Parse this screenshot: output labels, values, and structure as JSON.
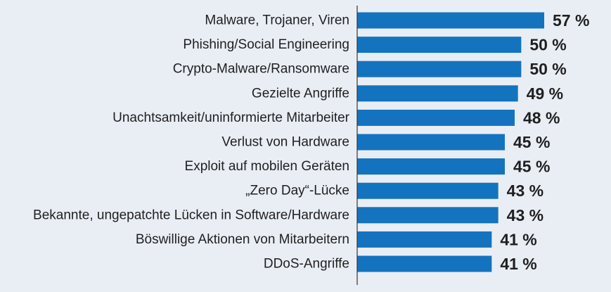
{
  "chart_data": {
    "type": "bar",
    "orientation": "horizontal",
    "title": "",
    "xlabel": "",
    "ylabel": "",
    "value_suffix": " %",
    "grid": false,
    "legend": "none",
    "bar_color": "#1473be",
    "xlim": [
      0,
      100
    ],
    "categories": [
      "Malware, Trojaner, Viren",
      "Phishing/Social Engineering",
      "Crypto-Malware/Ransomware",
      "Gezielte Angriffe",
      "Unachtsamkeit/uninformierte Mitarbeiter",
      "Verlust von Hardware",
      "Exploit auf mobilen Geräten",
      "„Zero Day“-Lücke",
      "Bekannte, ungepatchte Lücken in Software/Hardware",
      "Böswillige Aktionen von Mitarbeitern",
      "DDoS-Angriffe"
    ],
    "values": [
      57,
      50,
      50,
      49,
      48,
      45,
      45,
      43,
      43,
      41,
      41
    ],
    "value_labels": [
      "57 %",
      "50 %",
      "50 %",
      "49 %",
      "48 %",
      "45 %",
      "45 %",
      "43 %",
      "43 %",
      "41 %",
      "41 %"
    ]
  }
}
